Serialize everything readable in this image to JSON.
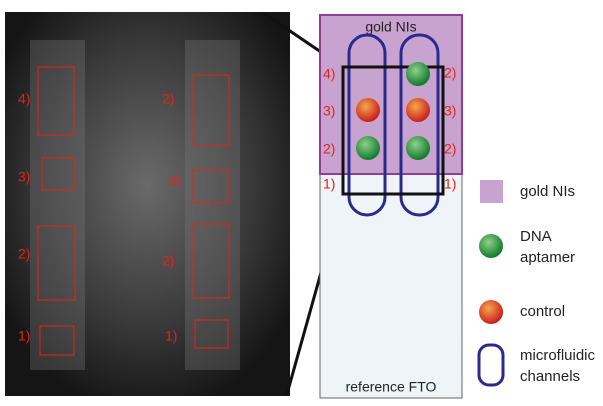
{
  "photo": {
    "left_labels": [
      "4)",
      "3)",
      "2)",
      "1)"
    ],
    "right_labels": [
      "2)",
      "3)",
      "2)",
      "1)"
    ]
  },
  "schematic": {
    "top_label": "gold NIs",
    "bottom_label": "reference FTO",
    "left_labels": [
      "4)",
      "3)",
      "2)",
      "1)"
    ],
    "right_labels": [
      "2)",
      "3)",
      "2)",
      "1)"
    ]
  },
  "legend": [
    {
      "label": "gold NIs"
    },
    {
      "label": "DNA aptamer"
    },
    {
      "label": "control"
    },
    {
      "label": "microfluidic channels"
    }
  ]
}
